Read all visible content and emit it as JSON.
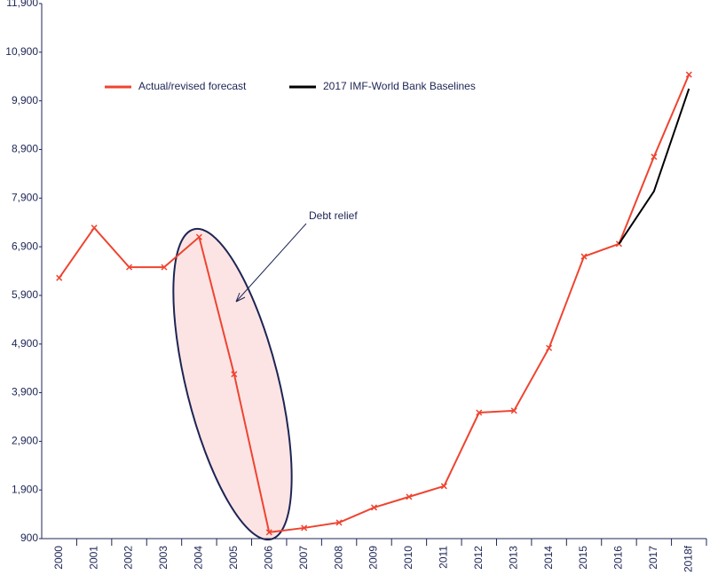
{
  "chart_data": {
    "type": "line",
    "categories": [
      "2000",
      "2001",
      "2002",
      "2003",
      "2004",
      "2005",
      "2006",
      "2007",
      "2008",
      "2009",
      "2010",
      "2011",
      "2012",
      "2013",
      "2014",
      "2015",
      "2016",
      "2017",
      "2018f"
    ],
    "series": [
      {
        "name": "Actual/revised forecast",
        "color": "#ee4430",
        "marker": "x",
        "values": [
          6260,
          7290,
          6480,
          6480,
          7100,
          4280,
          1030,
          1120,
          1230,
          1540,
          1760,
          1980,
          3490,
          3530,
          4820,
          6700,
          6960,
          8750,
          10440
        ]
      },
      {
        "name": "2017 IMF-World Bank Baselines",
        "color": "#000000",
        "values": [
          null,
          null,
          null,
          null,
          null,
          null,
          null,
          null,
          null,
          null,
          null,
          null,
          null,
          null,
          null,
          null,
          6960,
          8040,
          10150
        ]
      }
    ],
    "ylim": [
      900,
      11900
    ],
    "yticks": [
      900,
      {
        "value": 1900,
        "label": "1,900"
      },
      {
        "value": 2900,
        "label": "2,900"
      },
      {
        "value": 3900,
        "label": "3,900"
      },
      {
        "value": 4900,
        "label": "4,900"
      },
      {
        "value": 5900,
        "label": "5,900"
      },
      {
        "value": 6900,
        "label": "6,900"
      },
      {
        "value": 7900,
        "label": "7,900"
      },
      {
        "value": 8900,
        "label": "8,900"
      },
      {
        "value": 9900,
        "label": "9,900"
      },
      {
        "value": 10900,
        "label": "10,900"
      },
      {
        "value": 11900,
        "label": "11,900"
      }
    ],
    "annotations": [
      "Debt relief"
    ],
    "legend": "top"
  }
}
